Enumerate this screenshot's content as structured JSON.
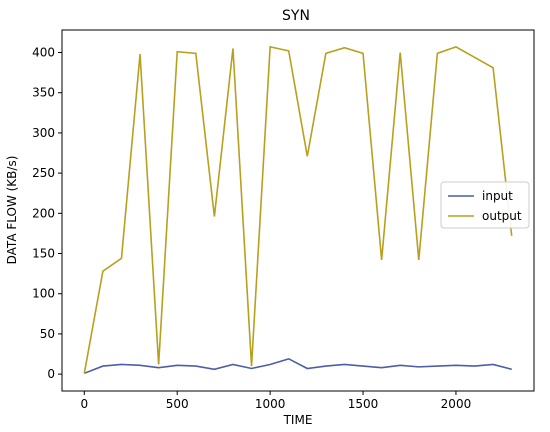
{
  "chart_data": {
    "type": "line",
    "title": "SYN",
    "xlabel": "TIME",
    "ylabel": "DATA FLOW (KB/s)",
    "xlim": [
      -120,
      2420
    ],
    "ylim": [
      -21,
      428
    ],
    "xticks": [
      0,
      500,
      1000,
      1500,
      2000
    ],
    "yticks": [
      0,
      50,
      100,
      150,
      200,
      250,
      300,
      350,
      400
    ],
    "grid": false,
    "legend": "center-right",
    "x": [
      0,
      100,
      200,
      300,
      400,
      500,
      600,
      700,
      800,
      900,
      1000,
      1100,
      1200,
      1300,
      1400,
      1500,
      1600,
      1700,
      1800,
      1900,
      2000,
      2100,
      2200,
      2300
    ],
    "series": [
      {
        "name": "input",
        "color": "#4c5ea8",
        "values": [
          1,
          10,
          12,
          11,
          8,
          11,
          10,
          6,
          12,
          7,
          12,
          19,
          7,
          10,
          12,
          10,
          8,
          11,
          9,
          10,
          11,
          10,
          12,
          6
        ]
      },
      {
        "name": "output",
        "color": "#b8a01e",
        "values": [
          1,
          128,
          144,
          398,
          12,
          401,
          399,
          196,
          405,
          10,
          407,
          402,
          271,
          399,
          406,
          399,
          142,
          400,
          142,
          399,
          407,
          394,
          381,
          172
        ]
      }
    ]
  }
}
